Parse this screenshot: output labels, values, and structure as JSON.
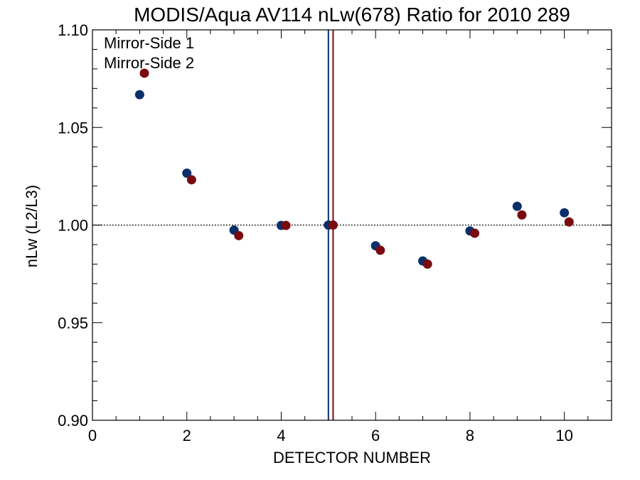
{
  "chart_data": {
    "type": "scatter",
    "title": "MODIS/Aqua AV114 nLw(678) Ratio for 2010 289",
    "xlabel": "DETECTOR NUMBER",
    "ylabel": "nLw (L2/L3)",
    "xlim": [
      0,
      11
    ],
    "ylim": [
      0.9,
      1.1
    ],
    "x_major_ticks": [
      0,
      2,
      4,
      6,
      8,
      10
    ],
    "x_minor_step": 0.5,
    "y_major_ticks": [
      0.9,
      0.95,
      1.0,
      1.05,
      1.1
    ],
    "y_minor_step": 0.01,
    "x_tick_labels": [
      "0",
      "2",
      "4",
      "6",
      "8",
      "10"
    ],
    "y_tick_labels": [
      "0.90",
      "0.95",
      "1.00",
      "1.05",
      "1.10"
    ],
    "reference_line": {
      "y": 1.0,
      "style": "dotted"
    },
    "legend_position": "top-left",
    "series": [
      {
        "name": "Mirror-Side 1",
        "color": "#0b2f6b",
        "x": [
          1,
          2,
          3,
          4,
          5,
          6,
          7,
          8,
          9,
          10
        ],
        "values": [
          1.0668,
          1.0266,
          0.9974,
          0.9998,
          1.0,
          0.9894,
          0.9816,
          0.997,
          1.0096,
          1.0063
        ],
        "vertical_line_x": 5.0
      },
      {
        "name": "Mirror-Side 2",
        "color": "#7a0a0f",
        "x": [
          1.1,
          2.1,
          3.1,
          4.1,
          5.1,
          6.1,
          7.1,
          8.1,
          9.1,
          10.1
        ],
        "values": [
          1.0778,
          1.0232,
          0.9946,
          0.9998,
          1.0,
          0.9871,
          0.98,
          0.9958,
          1.0052,
          1.0016
        ],
        "vertical_line_x": 5.1
      }
    ]
  }
}
